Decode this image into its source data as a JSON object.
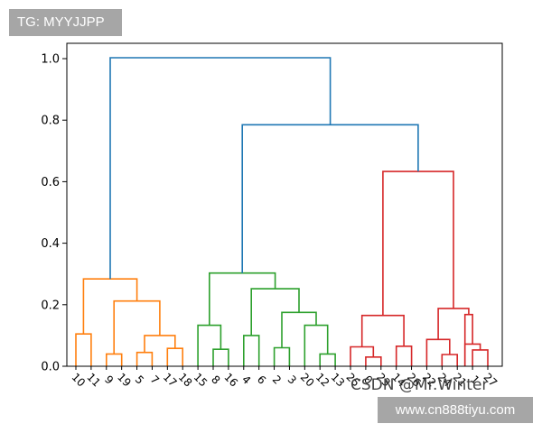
{
  "watermarks": {
    "top_left": "TG: MYYJJPP",
    "bottom_right": "www.cn888tiyu.com",
    "csdn": "CSDN @Mr.Winter"
  },
  "colors": {
    "axis": "#000000",
    "root_links": "#1f77b4",
    "cluster_orange": "#ff7f0e",
    "cluster_green": "#2ca02c",
    "cluster_red": "#d62728"
  },
  "chart_data": {
    "type": "dendrogram",
    "ylim": [
      0,
      1.0
    ],
    "yticks": [
      "0.0",
      "0.2",
      "0.4",
      "0.6",
      "0.8",
      "1.0"
    ],
    "grid": false,
    "leaf_order": [
      "10",
      "11",
      "9",
      "19",
      "5",
      "7",
      "17",
      "18",
      "15",
      "8",
      "16",
      "4",
      "6",
      "2",
      "3",
      "20",
      "12",
      "13",
      "25",
      "0",
      "23",
      "14",
      "26",
      "22",
      "24",
      "21",
      "1",
      "27"
    ],
    "links": [
      {
        "a": 0,
        "b": 1,
        "h": 0.105,
        "c": "cluster_orange"
      },
      {
        "a": 2,
        "b": 3,
        "h": 0.04,
        "c": "cluster_orange"
      },
      {
        "a": 4,
        "b": 5,
        "h": 0.045,
        "c": "cluster_orange"
      },
      {
        "a": 6,
        "b": 7,
        "h": 0.058,
        "c": "cluster_orange"
      },
      {
        "a": 4.5,
        "b": 6.5,
        "h": 0.1,
        "c": "cluster_orange"
      },
      {
        "a": 2.5,
        "b": 5.5,
        "h": 0.212,
        "c": "cluster_orange"
      },
      {
        "a": 0.5,
        "b": 4.0,
        "h": 0.284,
        "c": "cluster_orange"
      },
      {
        "a": 9,
        "b": 10,
        "h": 0.055,
        "c": "cluster_green"
      },
      {
        "a": 8,
        "b": 9.5,
        "h": 0.133,
        "c": "cluster_green"
      },
      {
        "a": 11,
        "b": 12,
        "h": 0.1,
        "c": "cluster_green"
      },
      {
        "a": 13,
        "b": 14,
        "h": 0.06,
        "c": "cluster_green"
      },
      {
        "a": 16,
        "b": 17,
        "h": 0.04,
        "c": "cluster_green"
      },
      {
        "a": 15,
        "b": 16.5,
        "h": 0.133,
        "c": "cluster_green"
      },
      {
        "a": 13.5,
        "b": 15.75,
        "h": 0.175,
        "c": "cluster_green"
      },
      {
        "a": 11.5,
        "b": 14.625,
        "h": 0.252,
        "c": "cluster_green"
      },
      {
        "a": 8.75,
        "b": 13.0625,
        "h": 0.303,
        "c": "cluster_green"
      },
      {
        "a": 19,
        "b": 20,
        "h": 0.03,
        "c": "cluster_red"
      },
      {
        "a": 18,
        "b": 19.5,
        "h": 0.063,
        "c": "cluster_red"
      },
      {
        "a": 21,
        "b": 22,
        "h": 0.065,
        "c": "cluster_red"
      },
      {
        "a": 18.75,
        "b": 21.5,
        "h": 0.165,
        "c": "cluster_red"
      },
      {
        "a": 24,
        "b": 25,
        "h": 0.038,
        "c": "cluster_red"
      },
      {
        "a": 23,
        "b": 24.5,
        "h": 0.087,
        "c": "cluster_red"
      },
      {
        "a": 26,
        "b": 27,
        "h": 0.053,
        "c": "cluster_red"
      },
      {
        "a": 25.5,
        "b": 26.5,
        "h": 0.072,
        "c": "cluster_red"
      },
      {
        "a": 25.5,
        "b": 26.0,
        "h": 0.168,
        "c": "cluster_red"
      },
      {
        "a": 23.75,
        "b": 25.75,
        "h": 0.188,
        "c": "cluster_red"
      },
      {
        "a": 20.125,
        "b": 24.75,
        "h": 0.633,
        "c": "cluster_red"
      },
      {
        "a": 10.90625,
        "b": 22.4375,
        "h": 0.785,
        "c": "root_links"
      },
      {
        "a": 2.25,
        "b": 16.671875,
        "h": 1.003,
        "c": "root_links"
      }
    ]
  }
}
